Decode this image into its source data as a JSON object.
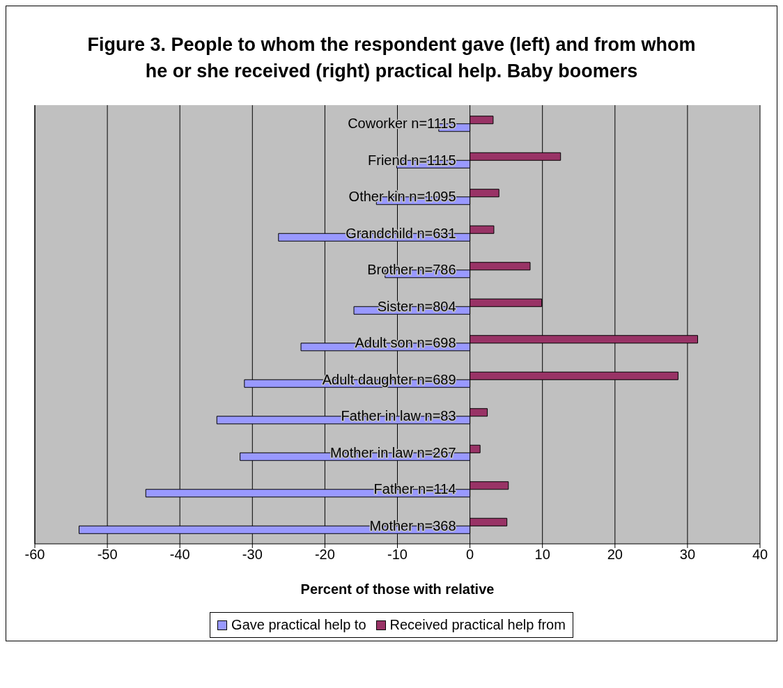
{
  "chart_data": {
    "type": "bar",
    "orientation": "horizontal",
    "title": "Figure 3. People to whom the respondent gave (left) and from whom he or she received (right) practical help. Baby boomers",
    "xlabel": "Percent of those with relative",
    "categories": [
      "Coworker n=1115",
      "Friend n=1115",
      "Other kin n=1095",
      "Grandchild n=631",
      "Brother n=786",
      "Sister n=804",
      "Adult son n=698",
      "Adult daughter n=689",
      "Father in law n=83",
      "Mother in law n=267",
      "Father n=114",
      "Mother n=368"
    ],
    "series": [
      {
        "name": "Gave practical help to",
        "color": "#9999ff",
        "values": [
          -4.3,
          -10.1,
          -12.9,
          -26.4,
          -11.7,
          -16.0,
          -23.3,
          -31.1,
          -34.9,
          -31.7,
          -44.7,
          -53.9
        ]
      },
      {
        "name": "Received practical help from",
        "color": "#993366",
        "values": [
          3.2,
          12.5,
          4.0,
          3.3,
          8.3,
          9.9,
          31.4,
          28.7,
          2.4,
          1.4,
          5.3,
          5.1
        ]
      }
    ],
    "xlim": [
      -60,
      40
    ],
    "xticks": [
      -60,
      -50,
      -40,
      -30,
      -20,
      -10,
      0,
      10,
      20,
      30,
      40
    ],
    "grid": "x",
    "legend": "bottom"
  }
}
